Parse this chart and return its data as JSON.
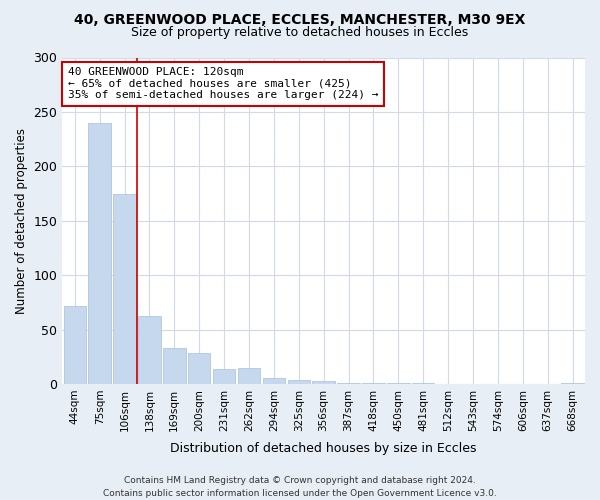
{
  "title1": "40, GREENWOOD PLACE, ECCLES, MANCHESTER, M30 9EX",
  "title2": "Size of property relative to detached houses in Eccles",
  "xlabel": "Distribution of detached houses by size in Eccles",
  "ylabel": "Number of detached properties",
  "categories": [
    "44sqm",
    "75sqm",
    "106sqm",
    "138sqm",
    "169sqm",
    "200sqm",
    "231sqm",
    "262sqm",
    "294sqm",
    "325sqm",
    "356sqm",
    "387sqm",
    "418sqm",
    "450sqm",
    "481sqm",
    "512sqm",
    "543sqm",
    "574sqm",
    "606sqm",
    "637sqm",
    "668sqm"
  ],
  "values": [
    72,
    240,
    175,
    62,
    33,
    28,
    14,
    15,
    5,
    4,
    3,
    1,
    1,
    1,
    1,
    0,
    0,
    0,
    0,
    0,
    1
  ],
  "bar_color": "#c5d8ed",
  "bar_edgecolor": "#a8c0d8",
  "vline_color": "#cc0000",
  "vline_pos": 2.5,
  "annotation_text": "40 GREENWOOD PLACE: 120sqm\n← 65% of detached houses are smaller (425)\n35% of semi-detached houses are larger (224) →",
  "annotation_box_edgecolor": "#cc0000",
  "ylim": [
    0,
    300
  ],
  "yticks": [
    0,
    50,
    100,
    150,
    200,
    250,
    300
  ],
  "fig_background_color": "#e8eef5",
  "ax_background_color": "#ffffff",
  "grid_color": "#d0dae8",
  "footer": "Contains HM Land Registry data © Crown copyright and database right 2024.\nContains public sector information licensed under the Open Government Licence v3.0."
}
